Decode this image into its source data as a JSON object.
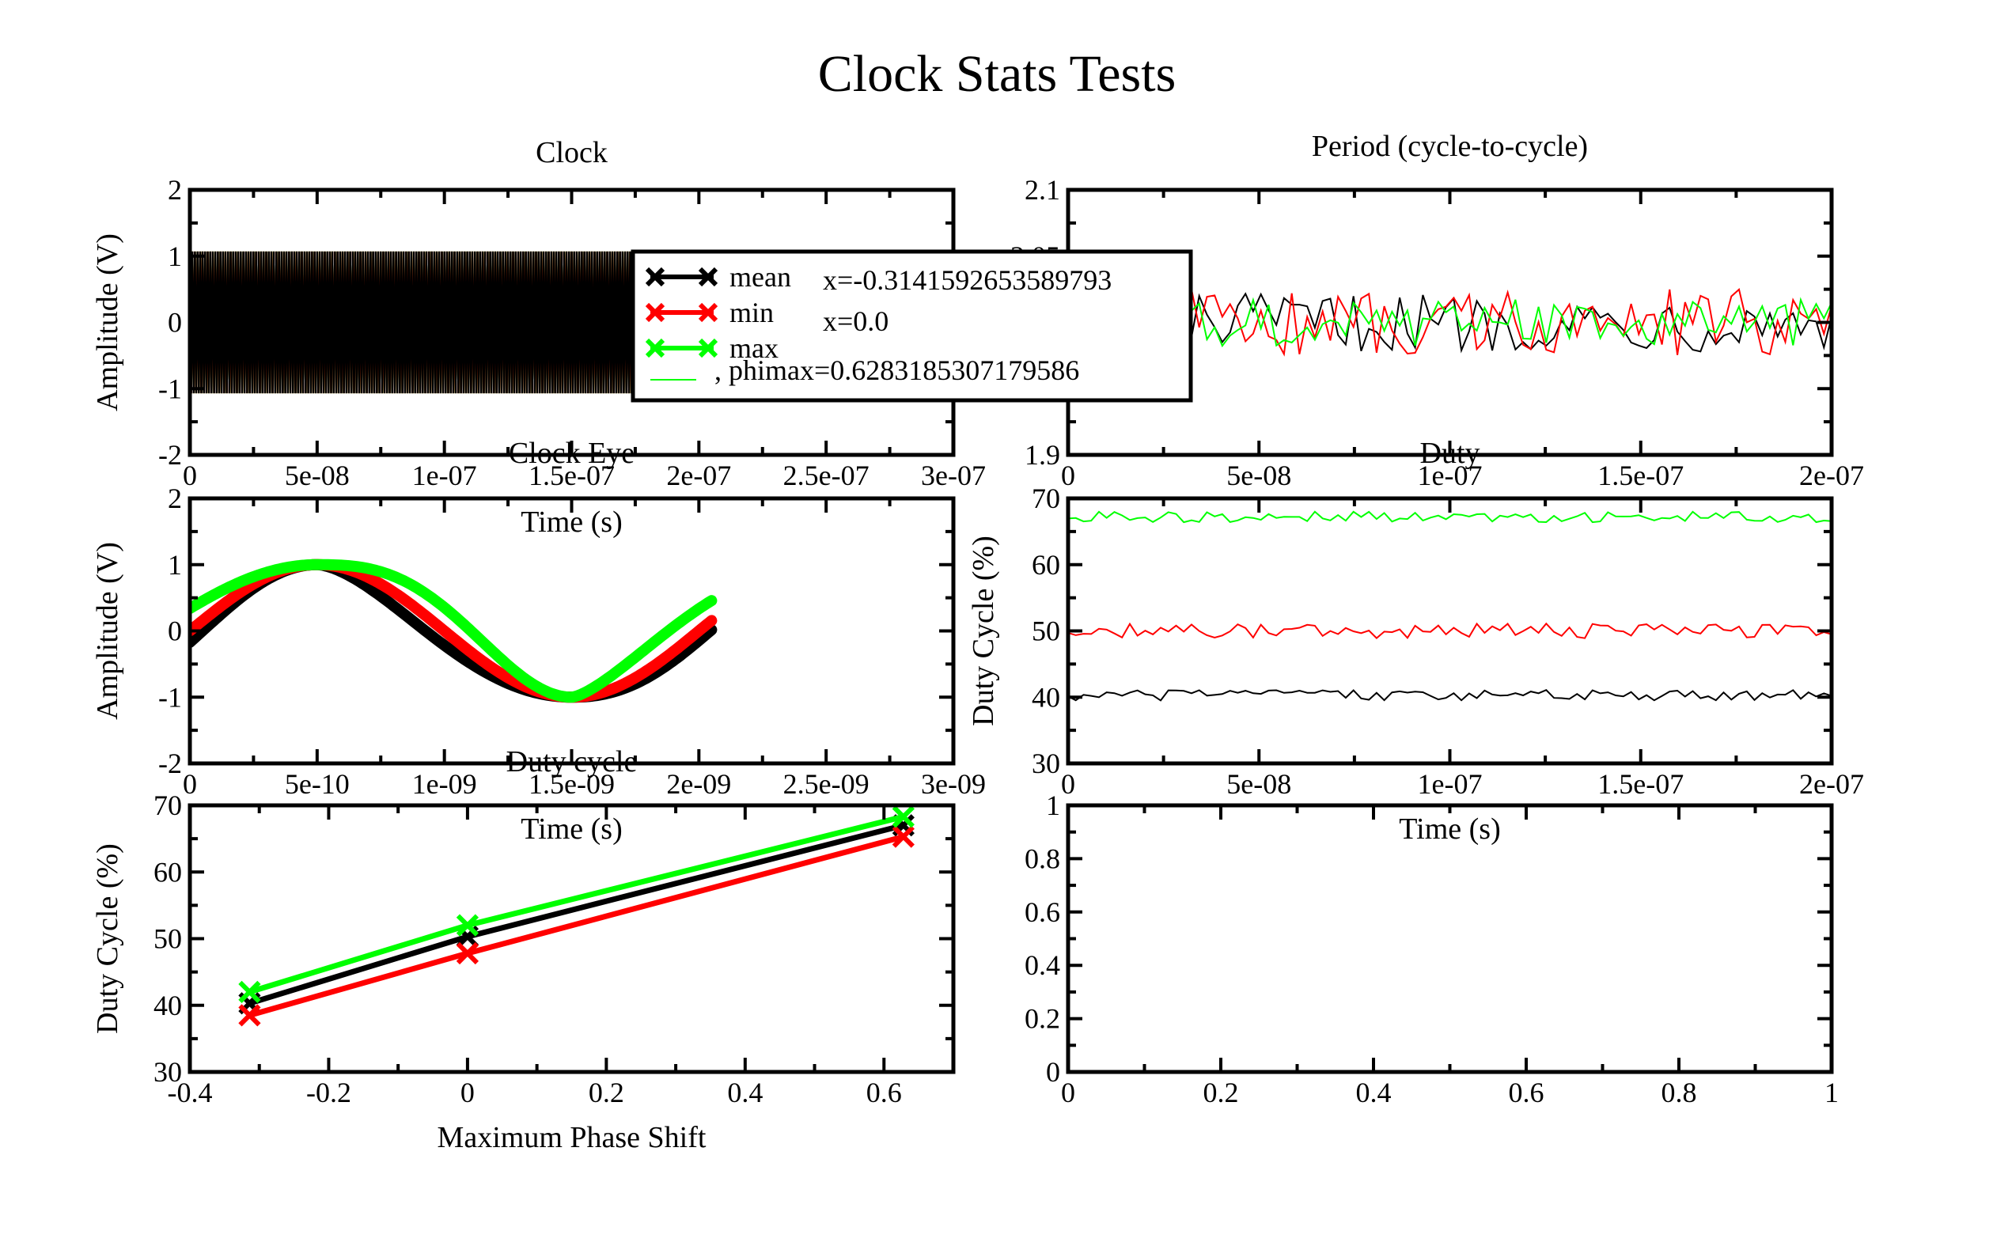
{
  "page": {
    "title": "Clock Stats Tests"
  },
  "colors": {
    "mean": "#000000",
    "min": "#ff0000",
    "max": "#00ff00"
  },
  "legend": {
    "series_labels": [
      "mean",
      "min",
      "max"
    ],
    "lines": [
      "x=-0.3141592653589793",
      "x=0.0",
      ", phimax=0.6283185307179586"
    ]
  },
  "chart_data": [
    {
      "id": "clock",
      "type": "line",
      "title": "Clock",
      "xlabel": "Time (s)",
      "ylabel": "Amplitude (V)",
      "xlim": [
        0,
        3e-07
      ],
      "ylim": [
        -2,
        2
      ],
      "xticks": [
        "0",
        "5e-08",
        "1e-07",
        "1.5e-07",
        "2e-07",
        "2.5e-07",
        "3e-07"
      ],
      "yticks": [
        "-2",
        "-1",
        "0",
        "1",
        "2"
      ],
      "signal": {
        "frequency_hz": 1000000000.0,
        "x_end": 2.05e-07,
        "amplitude_max": 1.07,
        "amplitude_min": -1.07
      },
      "series": [
        {
          "name": "mean",
          "color": "#000000"
        },
        {
          "name": "min",
          "color": "#ff0000"
        },
        {
          "name": "max",
          "color": "#00ff00"
        }
      ]
    },
    {
      "id": "period",
      "type": "line",
      "title": "Period (cycle-to-cycle)",
      "xlabel": "",
      "ylabel": "",
      "xlim": [
        0,
        2e-07
      ],
      "ylim": [
        1.9,
        2.1
      ],
      "xticks": [
        "0",
        "5e-08",
        "1e-07",
        "1.5e-07",
        "2e-07"
      ],
      "yticks": [
        "1.9",
        "",
        "2",
        "2.05",
        "2.1"
      ],
      "series": [
        {
          "name": "mean",
          "color": "#000000",
          "center": 2.0,
          "spread": 0.022,
          "points": 100
        },
        {
          "name": "min",
          "color": "#ff0000",
          "center": 2.0,
          "spread": 0.025,
          "points": 100
        },
        {
          "name": "max",
          "color": "#00ff00",
          "center": 2.0,
          "spread": 0.018,
          "points": 100
        }
      ]
    },
    {
      "id": "eye",
      "type": "line",
      "title": "Clock Eye",
      "xlabel": "Time (s)",
      "ylabel": "Amplitude (V)",
      "xlim": [
        0,
        3e-09
      ],
      "ylim": [
        -2,
        2
      ],
      "xticks": [
        "0",
        "5e-10",
        "1e-09",
        "1.5e-09",
        "2e-09",
        "2.5e-09",
        "3e-09"
      ],
      "yticks": [
        "-2",
        "-1",
        "0",
        "1",
        "2"
      ],
      "eye": {
        "x_end": 2.05e-09,
        "peak_x": 5e-10,
        "trough_x": 1.5e-09
      },
      "series": [
        {
          "name": "mean",
          "color": "#000000",
          "phase": -0.314
        },
        {
          "name": "min",
          "color": "#ff0000",
          "phase": 0.0
        },
        {
          "name": "max",
          "color": "#00ff00",
          "phase": 0.628
        }
      ]
    },
    {
      "id": "duty",
      "type": "line",
      "title": "Duty",
      "xlabel": "Time (s)",
      "ylabel": "Duty Cycle (%)",
      "xlim": [
        0,
        2e-07
      ],
      "ylim": [
        30,
        70
      ],
      "xticks": [
        "0",
        "5e-08",
        "1e-07",
        "1.5e-07",
        "2e-07"
      ],
      "yticks": [
        "30",
        "40",
        "50",
        "60",
        "70"
      ],
      "series": [
        {
          "name": "max",
          "color": "#00ff00",
          "center": 67.2,
          "spread": 0.8,
          "points": 100
        },
        {
          "name": "min",
          "color": "#ff0000",
          "center": 50.0,
          "spread": 1.1,
          "points": 100
        },
        {
          "name": "mean",
          "color": "#000000",
          "center": 40.3,
          "spread": 0.8,
          "points": 100
        }
      ]
    },
    {
      "id": "dutycycle",
      "type": "line",
      "title": "Duty cycle",
      "xlabel": "Maximum Phase Shift",
      "ylabel": "Duty Cycle (%)",
      "xlim": [
        -0.4,
        0.7
      ],
      "ylim": [
        30,
        70
      ],
      "xticks": [
        "-0.4",
        "-0.2",
        "0",
        "0.2",
        "0.4",
        "0.6"
      ],
      "yticks": [
        "30",
        "40",
        "50",
        "60",
        "70"
      ],
      "x": [
        -0.314,
        0.0,
        0.628
      ],
      "series": [
        {
          "name": "mean",
          "color": "#000000",
          "values": [
            40.3,
            50.3,
            67.0
          ]
        },
        {
          "name": "min",
          "color": "#ff0000",
          "values": [
            38.5,
            47.8,
            65.3
          ]
        },
        {
          "name": "max",
          "color": "#00ff00",
          "values": [
            42.0,
            52.0,
            68.3
          ]
        }
      ]
    },
    {
      "id": "empty",
      "type": "line",
      "title": "",
      "xlabel": "",
      "ylabel": "",
      "xlim": [
        0,
        1
      ],
      "ylim": [
        0,
        1
      ],
      "xticks": [
        "0",
        "0.2",
        "0.4",
        "0.6",
        "0.8",
        "1"
      ],
      "yticks": [
        "0",
        "0.2",
        "0.4",
        "0.6",
        "0.8",
        "1"
      ],
      "series": []
    }
  ]
}
